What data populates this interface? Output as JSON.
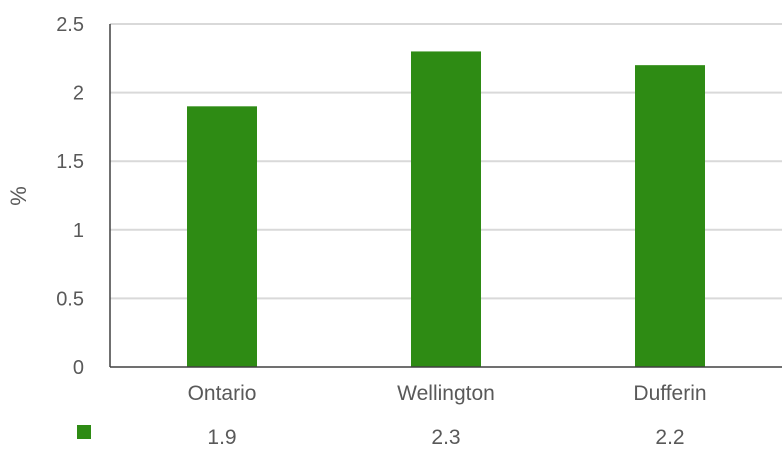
{
  "chart_data": {
    "type": "bar",
    "categories": [
      "Ontario",
      "Wellington",
      "Dufferin"
    ],
    "series": [
      {
        "values": [
          1.9,
          2.3,
          2.2
        ]
      }
    ],
    "table_values": [
      "1.9",
      "2.3",
      "2.2"
    ],
    "xlabel": "",
    "ylabel": "%",
    "ylim": [
      0,
      2.5
    ],
    "yticks": [
      0,
      0.5,
      1,
      1.5,
      2,
      2.5
    ],
    "ytick_labels": [
      "0",
      "0.5",
      "1",
      "1.5",
      "2",
      "2.5"
    ],
    "grid": true,
    "legend": "bottom-left, data table with legend key",
    "colors": {
      "bar": "#2e8b14",
      "grid": "#d9d9d9",
      "axis": "#404040",
      "text": "#595959"
    }
  }
}
